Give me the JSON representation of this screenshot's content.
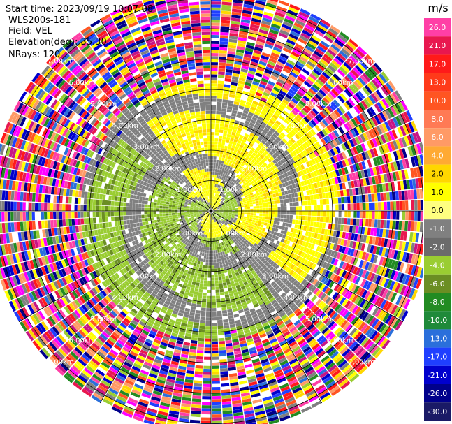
{
  "header": {
    "start_time": "Start time: 2023/09/19 10:07:08",
    "station": "WLS200s-181",
    "field": "Field: VEL",
    "elevation": "Elevation(deg): 35.30",
    "nrays": "NRays: 120"
  },
  "colorbar": {
    "unit": "m/s",
    "ticks": [
      "26.0",
      "21.0",
      "17.0",
      "13.0",
      "10.0",
      "8.0",
      "6.0",
      "4.0",
      "2.0",
      "1.0",
      "0.0",
      "-1.0",
      "-2.0",
      "-4.0",
      "-6.0",
      "-8.0",
      "-10.0",
      "-13.0",
      "-17.0",
      "-21.0",
      "-26.0",
      "-30.0"
    ],
    "colors": [
      "#ff3fa6",
      "#e8174f",
      "#ff1a1a",
      "#ff3a1a",
      "#ff5522",
      "#ff7a55",
      "#ff9a66",
      "#ffaa33",
      "#ffd700",
      "#ffff00",
      "#ffff80",
      "#808080",
      "#6b6b6b",
      "#9acd32",
      "#6b8e23",
      "#228b22",
      "#1f8a3a",
      "#2a6fdb",
      "#1f3fff",
      "#0000cd",
      "#00008b",
      "#1a1a66"
    ]
  },
  "chart_data": {
    "type": "heatmap",
    "projection": "polar PPI",
    "field": "VEL",
    "unit": "m/s",
    "n_rays": 120,
    "elevation_deg": 35.3,
    "range_rings_km": [
      1,
      2,
      3,
      4,
      5,
      6,
      7
    ],
    "ring_labels": [
      "1.00km",
      "2.00km",
      "3.00km",
      "4.00km",
      "5.00km",
      "6.00km",
      "7.00km"
    ],
    "radial_pattern": [
      {
        "range_km": [
          0,
          0.9
        ],
        "dominant": "mixed gray/green/yellow (-1 to 2 m/s)"
      },
      {
        "range_km": [
          0.9,
          4.2
        ],
        "dominant": "yellow 2 to 4 m/s east/north, green -2 to -4 m/s west/south, gray 0 m/s bands"
      },
      {
        "range_km": [
          4.2,
          7.3
        ],
        "dominant": "noise, all colour classes"
      }
    ]
  }
}
